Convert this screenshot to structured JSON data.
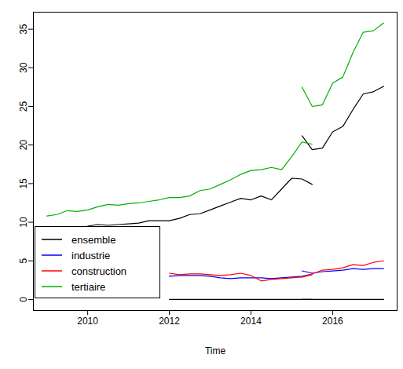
{
  "chart_data": {
    "type": "line",
    "x_label": "Time",
    "x": [
      2009,
      2009.25,
      2009.5,
      2009.75,
      2010,
      2010.25,
      2010.5,
      2010.75,
      2011,
      2011.25,
      2011.5,
      2011.75,
      2012,
      2012.25,
      2012.5,
      2012.75,
      2013,
      2013.25,
      2013.5,
      2013.75,
      2014,
      2014.25,
      2014.5,
      2014.75,
      2015,
      2015.25,
      2015.5,
      2015.25,
      2015.5,
      2015.75,
      2016,
      2016.25,
      2016.5,
      2016.75,
      2017,
      2017.25
    ],
    "series": [
      {
        "name": "ensemble",
        "color": "#000000",
        "values": [
          null,
          null,
          null,
          null,
          9.5,
          9.7,
          9.6,
          9.7,
          9.8,
          9.9,
          10.2,
          10.2,
          10.2,
          10.5,
          11.0,
          11.1,
          11.6,
          12.1,
          12.6,
          13.1,
          12.9,
          13.4,
          12.9,
          14.3,
          15.7,
          15.6,
          14.9,
          21.2,
          19.4,
          19.6,
          21.7,
          22.4,
          24.6,
          26.6,
          26.9,
          27.6
        ]
      },
      {
        "name": "industrie",
        "color": "#0000ff",
        "values": [
          null,
          null,
          null,
          null,
          null,
          null,
          null,
          null,
          null,
          null,
          null,
          null,
          3.0,
          3.1,
          3.1,
          3.1,
          3.0,
          2.8,
          2.7,
          2.8,
          2.8,
          2.8,
          2.7,
          2.8,
          2.9,
          3.0,
          3.3,
          3.7,
          3.4,
          3.6,
          3.7,
          3.8,
          4.0,
          3.9,
          4.0,
          4.0
        ]
      },
      {
        "name": "construction",
        "color": "#ff0000",
        "values": [
          null,
          null,
          null,
          null,
          null,
          null,
          null,
          null,
          null,
          null,
          null,
          null,
          3.4,
          3.2,
          3.3,
          3.3,
          3.2,
          3.1,
          3.2,
          3.4,
          3.1,
          2.4,
          2.6,
          2.7,
          2.8,
          2.9,
          3.2,
          2.9,
          3.3,
          3.8,
          3.9,
          4.1,
          4.5,
          4.4,
          4.8,
          5.0
        ]
      },
      {
        "name": "tertiaire",
        "color": "#00b000",
        "values": [
          10.8,
          11.0,
          11.5,
          11.4,
          11.6,
          12.0,
          12.3,
          12.2,
          12.4,
          12.5,
          12.7,
          12.9,
          13.2,
          13.2,
          13.4,
          14.1,
          14.3,
          14.9,
          15.5,
          16.2,
          16.7,
          16.8,
          17.1,
          16.8,
          18.5,
          20.4,
          20.1,
          27.5,
          25.0,
          25.2,
          28.0,
          28.8,
          32.0,
          34.6,
          34.8,
          35.8
        ]
      },
      {
        "color": "#000000",
        "values": [
          null,
          null,
          null,
          null,
          null,
          null,
          null,
          null,
          null,
          null,
          null,
          null,
          0,
          0,
          0,
          0,
          0,
          0,
          0,
          0,
          0,
          0,
          0,
          0,
          0,
          0,
          0,
          0,
          0,
          0,
          0,
          0,
          0,
          0,
          0,
          0
        ]
      }
    ],
    "xlim": [
      2008.67,
      2017.58
    ],
    "xticks": [
      2010,
      2012,
      2014,
      2016
    ],
    "ylim": [
      -1.43,
      37.2
    ],
    "yticks": [
      0,
      5,
      10,
      15,
      20,
      25,
      30,
      35
    ],
    "grid": false,
    "legend": "bottom-left"
  }
}
